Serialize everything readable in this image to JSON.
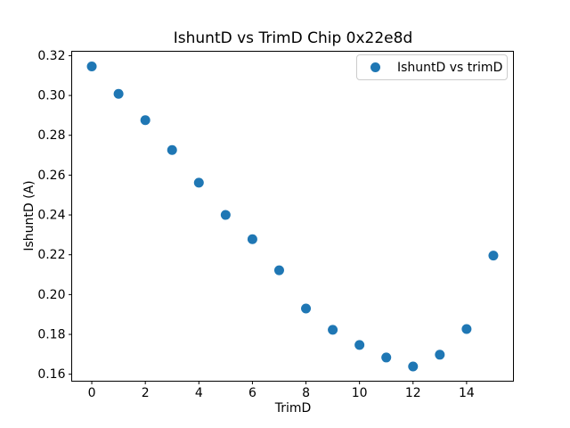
{
  "chart_data": {
    "type": "scatter",
    "title": "IshuntD vs TrimD Chip 0x22e8d",
    "xlabel": "TrimD",
    "ylabel": "IshuntD (A)",
    "grid": false,
    "legend": {
      "position": "upper right",
      "label": "IshuntD vs trimD"
    },
    "series": [
      {
        "name": "IshuntD vs trimD",
        "marker": "circle",
        "color": "#1f77b4",
        "x": [
          0,
          1,
          2,
          3,
          4,
          5,
          6,
          7,
          8,
          9,
          10,
          11,
          12,
          13,
          14,
          15
        ],
        "y": [
          0.3146,
          0.3008,
          0.2876,
          0.2726,
          0.2562,
          0.24,
          0.2278,
          0.2122,
          0.193,
          0.1823,
          0.1747,
          0.1684,
          0.1639,
          0.1698,
          0.1827,
          0.2196
        ]
      }
    ],
    "xlim": [
      -0.75,
      15.75
    ],
    "ylim": [
      0.1565,
      0.3222
    ],
    "xticks": [
      0,
      2,
      4,
      6,
      8,
      10,
      12,
      14
    ],
    "xtick_labels": [
      "0",
      "2",
      "4",
      "6",
      "8",
      "10",
      "12",
      "14"
    ],
    "yticks": [
      0.16,
      0.18,
      0.2,
      0.22,
      0.24,
      0.26,
      0.28,
      0.3,
      0.32
    ],
    "ytick_labels": [
      "0.16",
      "0.18",
      "0.20",
      "0.22",
      "0.24",
      "0.26",
      "0.28",
      "0.30",
      "0.32"
    ]
  }
}
